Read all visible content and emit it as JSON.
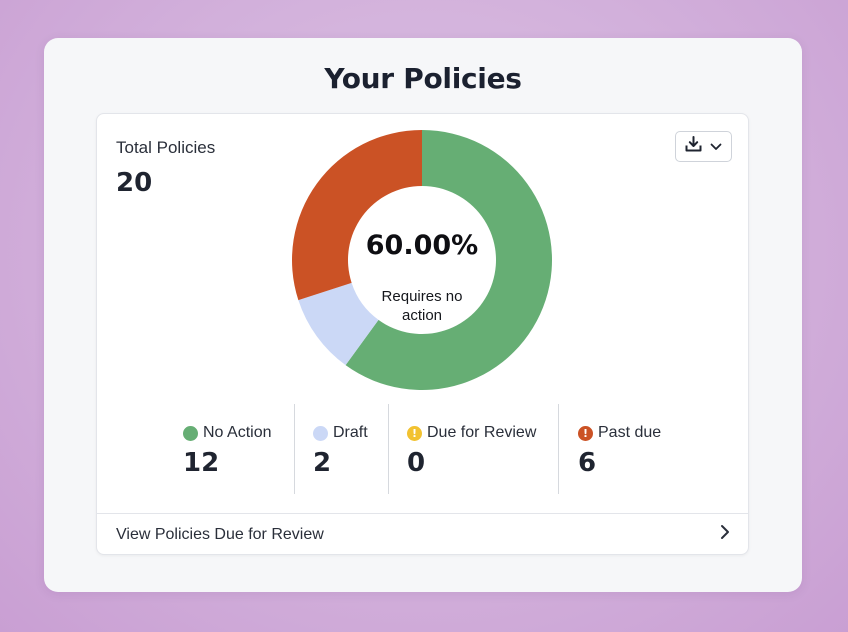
{
  "page": {
    "title": "Your Policies"
  },
  "summary": {
    "total_label": "Total Policies",
    "total_value": "20"
  },
  "chart": {
    "center_percent": "60.00%",
    "center_caption": "Requires no action"
  },
  "chart_data": {
    "type": "pie",
    "categories": [
      "No Action",
      "Draft",
      "Due for Review",
      "Past due"
    ],
    "values": [
      12,
      2,
      0,
      6
    ],
    "colors": [
      "#66ae74",
      "#cbd8f6",
      "#f2c230",
      "#cb5225"
    ]
  },
  "legend": [
    {
      "label": "No Action",
      "count": "12",
      "color": "#66ae74",
      "icon": "dot"
    },
    {
      "label": "Draft",
      "count": "2",
      "color": "#cbd8f6",
      "icon": "dot"
    },
    {
      "label": "Due for Review",
      "count": "0",
      "color": "#f2c230",
      "icon": "warning-circle-icon"
    },
    {
      "label": "Past due",
      "count": "6",
      "color": "#cb5225",
      "icon": "warning-circle-icon"
    }
  ],
  "footer": {
    "link_label": "View Policies Due for Review"
  },
  "toolbar": {
    "download_icon": "download-icon",
    "dropdown_icon": "chevron-down-icon"
  }
}
